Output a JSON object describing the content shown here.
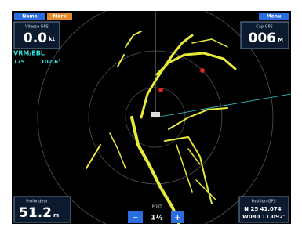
{
  "header": {
    "buttons": [
      "Name",
      "Mark"
    ],
    "menu": "Menu"
  },
  "speed": {
    "label": "Vitesse GPS",
    "value": "0.0",
    "unit": "kt"
  },
  "heading": {
    "label": "Cap GPS",
    "value": "006",
    "unit": "M"
  },
  "vrm_ebl": {
    "label": "VRM/EBL",
    "range": "179",
    "bearing": "102.6°"
  },
  "depth": {
    "label": "Profondeur",
    "value": "51.2",
    "unit": "m"
  },
  "position": {
    "label": "Position GPS",
    "lat": "N  25 41.074'",
    "lon": "W080 11.092'"
  },
  "range_control": {
    "label": "PORT",
    "value": "1½",
    "minus": "−",
    "plus": "+"
  }
}
